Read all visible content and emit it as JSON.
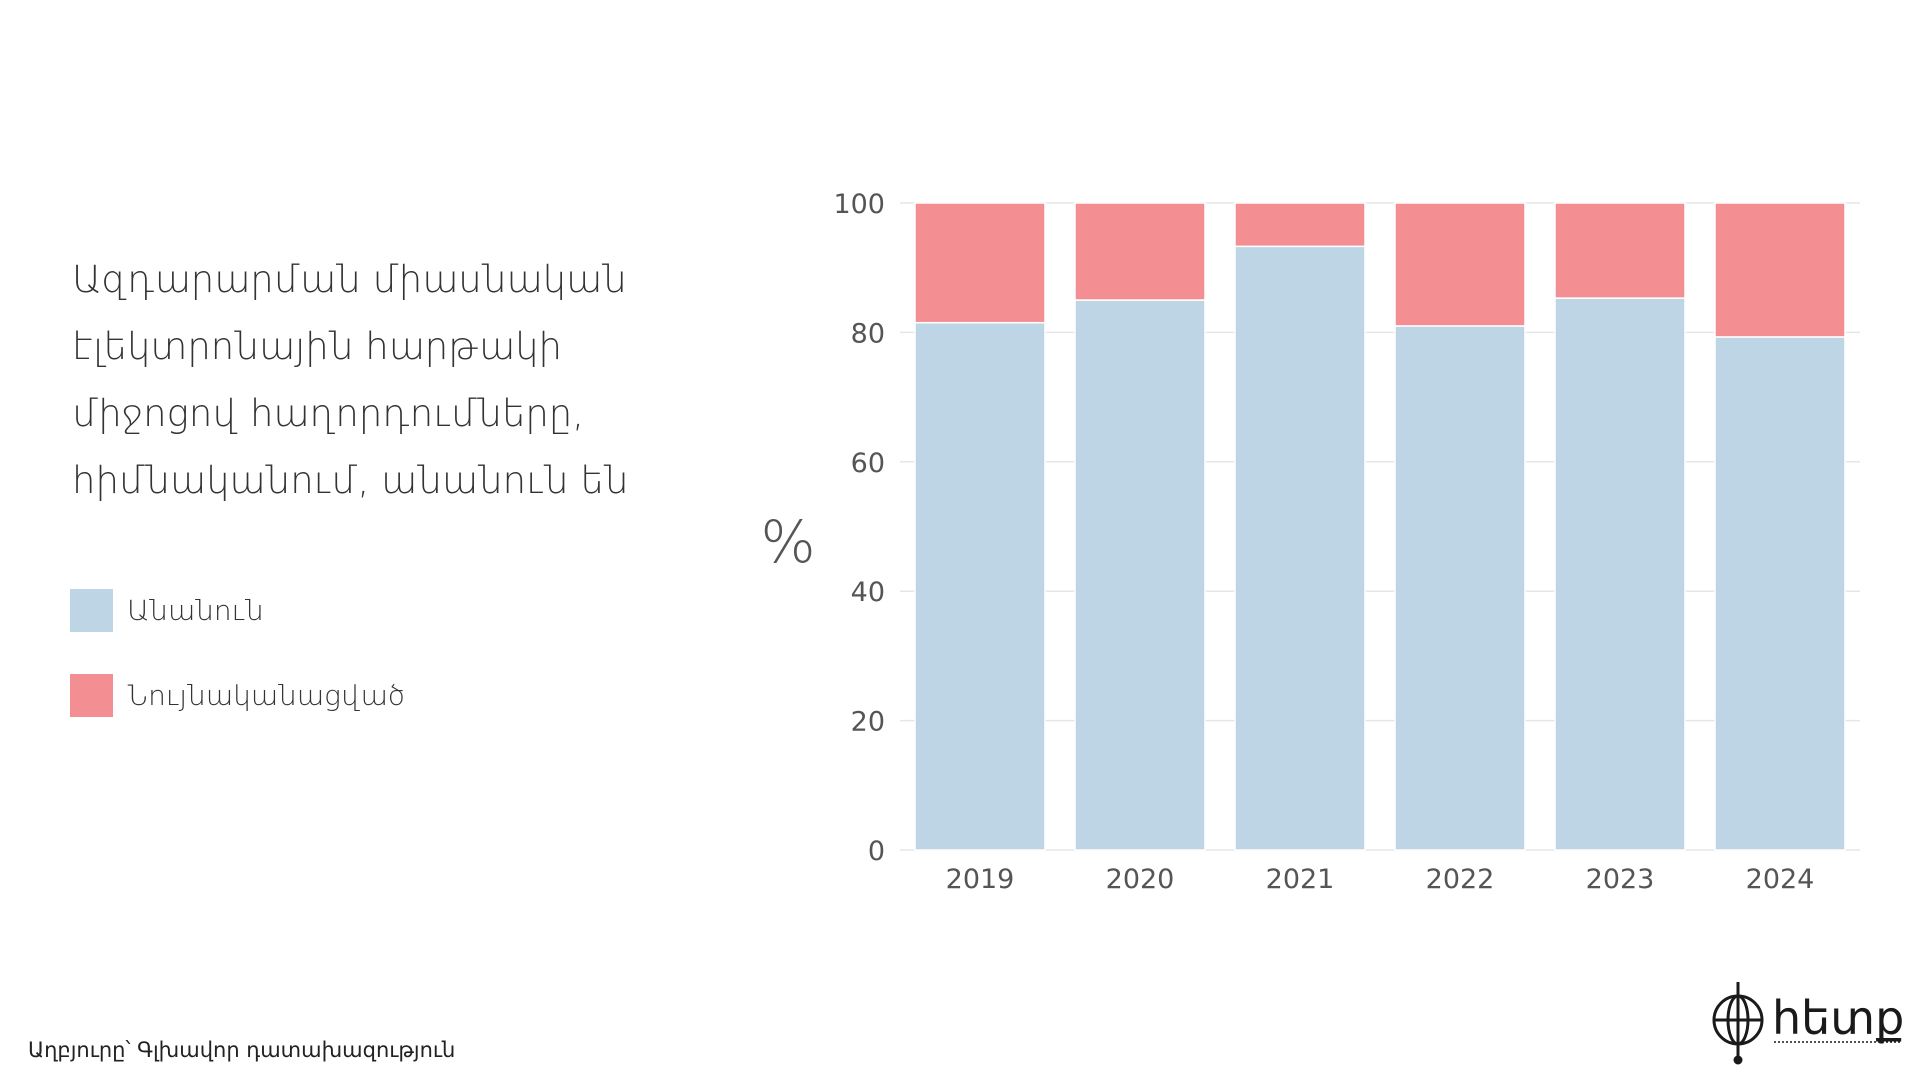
{
  "title_lines": [
    "Ազդարարման միասնական",
    "էլեկտրոնային հարթակի",
    "միջոցով հաղորդումները,",
    "հիմնականում, անանուն են"
  ],
  "legend": [
    {
      "label": "Անանուն",
      "color": "#bed5e6"
    },
    {
      "label": "Նույնականացված",
      "color": "#f38f93"
    }
  ],
  "source": "Աղբյուրը՝ Գլխավոր դատախազություն",
  "logo": {
    "text": "հետք"
  },
  "chart_data": {
    "type": "bar",
    "stacked": true,
    "categories": [
      "2019",
      "2020",
      "2021",
      "2022",
      "2023",
      "2024"
    ],
    "series": [
      {
        "name": "Անանուն",
        "values": [
          81.5,
          85,
          93.3,
          81,
          85.3,
          79.3
        ],
        "color": "#bed5e6"
      },
      {
        "name": "Նույնականացված",
        "values": [
          18.5,
          15,
          6.7,
          19,
          14.7,
          20.7
        ],
        "color": "#f38f93"
      }
    ],
    "ylabel": "%",
    "ylim": [
      0,
      100
    ],
    "yticks": [
      0,
      20,
      40,
      60,
      80,
      100
    ],
    "grid": true,
    "legend_position": "left"
  }
}
